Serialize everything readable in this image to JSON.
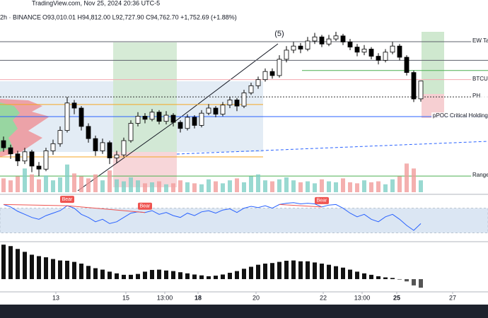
{
  "header": {
    "source": "TradingView.com, Nov 25, 2024 20:36 UTC-5",
    "symbol": "2h · BINANCE",
    "ohlc": "O93,010.01 H94,812.00 L92,727.90 C94,762.70 +1,752.69 (+1.88%)"
  },
  "chart_data": {
    "type": "candlestick",
    "annotations": [
      "(5)"
    ],
    "xlim": [
      -0.5,
      68.5
    ],
    "xticks": [
      {
        "value": 7.4,
        "label": "13"
      },
      {
        "value": 17.3,
        "label": "15"
      },
      {
        "value": 22.8,
        "label": "13:00"
      },
      {
        "value": 27.5,
        "label": "18"
      },
      {
        "value": 35.7,
        "label": "20"
      },
      {
        "value": 45.2,
        "label": "22"
      },
      {
        "value": 50.7,
        "label": "13:00"
      },
      {
        "value": 55.6,
        "label": "25"
      },
      {
        "value": 63.5,
        "label": "27"
      }
    ],
    "ylim": [
      83620,
      102730
    ],
    "open": [
      88900,
      88200,
      87600,
      86900,
      87800,
      86400,
      86100,
      87900,
      88600,
      89900,
      92600,
      92100,
      90300,
      89100,
      87900,
      88700,
      87200,
      87500,
      88900,
      90600,
      91300,
      91000,
      91700,
      90800,
      91400,
      90700,
      90100,
      91200,
      90400,
      91600,
      92100,
      91500,
      92400,
      92900,
      92300,
      93600,
      94300,
      94900,
      95700,
      95300,
      96900,
      97800,
      98200,
      97900,
      98700,
      99100,
      98400,
      98900,
      99200,
      98600,
      98100,
      97600,
      97900,
      97200,
      96800,
      97600,
      98200,
      97100,
      95600,
      93010.01
    ],
    "high": [
      89300,
      88500,
      87900,
      88200,
      88000,
      86800,
      88200,
      89000,
      90300,
      93200,
      92900,
      92300,
      90600,
      89400,
      89100,
      88900,
      87900,
      89200,
      90900,
      91700,
      91600,
      92000,
      91900,
      91800,
      91600,
      90900,
      91500,
      91400,
      91900,
      92500,
      92300,
      92700,
      93200,
      93100,
      93900,
      94600,
      95200,
      96000,
      96000,
      97300,
      98200,
      98600,
      98500,
      99100,
      99500,
      99300,
      99300,
      99600,
      99400,
      98900,
      98400,
      98300,
      98100,
      97500,
      97900,
      98600,
      98400,
      97300,
      95800,
      94812
    ],
    "low": [
      87800,
      87100,
      86400,
      86600,
      85800,
      85400,
      85900,
      87500,
      88300,
      89700,
      91500,
      89900,
      88700,
      87400,
      87600,
      86600,
      86700,
      87300,
      88700,
      90300,
      90600,
      90800,
      90500,
      90500,
      90300,
      89700,
      89900,
      90100,
      90200,
      91400,
      91200,
      91300,
      92100,
      91800,
      92100,
      93400,
      94000,
      94700,
      95000,
      95100,
      96600,
      97500,
      97500,
      97700,
      98400,
      98100,
      98200,
      98700,
      98300,
      97800,
      97200,
      97300,
      96900,
      96400,
      96600,
      97400,
      96800,
      95300,
      92700,
      92727.9
    ],
    "close": [
      88200,
      87600,
      86900,
      87800,
      86400,
      86100,
      87900,
      88600,
      89900,
      92600,
      92100,
      90300,
      89100,
      87900,
      88700,
      87200,
      87500,
      88900,
      90600,
      91300,
      91000,
      91700,
      90800,
      91400,
      90700,
      90100,
      91200,
      90400,
      91600,
      92100,
      91500,
      92400,
      92900,
      92300,
      93600,
      94300,
      94900,
      95700,
      95300,
      96900,
      97800,
      98200,
      97900,
      98700,
      99100,
      98400,
      98900,
      99200,
      98600,
      98100,
      97600,
      97900,
      97200,
      96800,
      97600,
      98200,
      97100,
      95600,
      93000,
      94762.7
    ],
    "up_color": "#ffffff",
    "down_color": "#000000",
    "levels": [
      {
        "name": "EW Tar",
        "value": 98630,
        "color": "#5d606b",
        "style": "solid"
      },
      {
        "value": 96800,
        "color": "#5d606b",
        "style": "solid"
      },
      {
        "value": 95800,
        "color": "#4caf50",
        "style": "solid"
      },
      {
        "name": "BTCU",
        "value": 94900,
        "color": "#f4a7b0",
        "style": "solid"
      },
      {
        "name": "PH",
        "value": 93200,
        "color": "#333333",
        "style": "dotted"
      },
      {
        "value": 92450,
        "color": "#f5a623",
        "style": "solid"
      },
      {
        "name": "pPOC Critical Holding Z",
        "value": 91260,
        "color": "#2962ff",
        "style": "solid"
      },
      {
        "value": 87300,
        "color": "#f5a623",
        "style": "solid"
      },
      {
        "name": "Range",
        "value": 85420,
        "color": "#4caf50",
        "style": "solid"
      }
    ],
    "volume": [
      1400,
      1200,
      1600,
      2400,
      1800,
      1300,
      1700,
      1200,
      1500,
      2800,
      1900,
      1600,
      1400,
      1800,
      1200,
      2200,
      1300,
      1100,
      1500,
      1200,
      900,
      1000,
      1100,
      800,
      900,
      1200,
      1000,
      900,
      800,
      1300,
      1100,
      900,
      1200,
      1400,
      1000,
      1600,
      1800,
      1200,
      1100,
      1300,
      1500,
      1200,
      1000,
      1100,
      900,
      1300,
      1100,
      1000,
      1400,
      1000,
      900,
      1200,
      1000,
      1100,
      800,
      1300,
      1600,
      2900,
      2400,
      1200
    ],
    "volume_ylim": [
      0,
      3000
    ],
    "rsi": [
      76,
      72,
      65,
      60,
      55,
      52,
      58,
      62,
      66,
      74,
      70,
      60,
      55,
      48,
      52,
      45,
      48,
      55,
      62,
      64,
      63,
      66,
      60,
      63,
      58,
      55,
      62,
      58,
      64,
      66,
      62,
      67,
      69,
      63,
      70,
      73,
      71,
      74,
      70,
      76,
      78,
      79,
      77,
      78,
      77,
      72,
      75,
      76,
      70,
      62,
      56,
      60,
      52,
      48,
      56,
      60,
      52,
      42,
      34,
      45
    ],
    "rsi_ylim": [
      18,
      89
    ],
    "rsi_band": [
      30,
      70
    ],
    "rsi_color": "#2962ff",
    "rsi_labels": [
      "Bear",
      "Bear",
      "Bear"
    ],
    "macd_hist": [
      1200,
      1150,
      1050,
      950,
      850,
      800,
      760,
      700,
      650,
      640,
      600,
      540,
      460,
      380,
      330,
      260,
      200,
      150,
      150,
      180,
      260,
      320,
      330,
      300,
      280,
      240,
      200,
      160,
      130,
      100,
      120,
      160,
      220,
      280,
      360,
      430,
      500,
      540,
      560,
      600,
      640,
      650,
      620,
      620,
      580,
      540,
      500,
      450,
      400,
      330,
      260,
      200,
      150,
      100,
      60,
      40,
      0,
      -80,
      -220,
      -300
    ],
    "macd_ylim": [
      -370,
      1230
    ]
  }
}
